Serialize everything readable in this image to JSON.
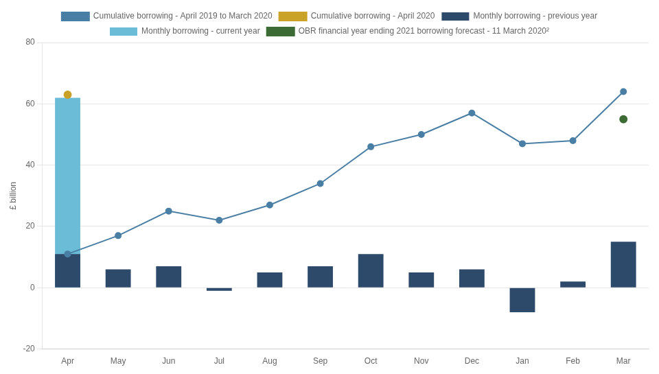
{
  "chart_data": {
    "type": "bar",
    "y_label": "£ billion",
    "categories": [
      "Apr",
      "May",
      "Jun",
      "Jul",
      "Aug",
      "Sep",
      "Oct",
      "Nov",
      "Dec",
      "Jan",
      "Feb",
      "Mar"
    ],
    "series": [
      {
        "name": "Cumulative borrowing - April 2019 to March 2020",
        "type": "line",
        "color": "#4a7fa5",
        "marker": "circle",
        "line_style": "solid",
        "values": [
          11,
          17,
          25,
          22,
          27,
          34,
          46,
          50,
          57,
          47,
          48,
          64
        ]
      },
      {
        "name": "Cumulative borrowing - April 2020",
        "type": "line",
        "color": "#c9a227",
        "marker": "circle",
        "line_style": "none",
        "values": [
          63,
          null,
          null,
          null,
          null,
          null,
          null,
          null,
          null,
          null,
          null,
          null
        ]
      },
      {
        "name": "Monthly borrowing - previous year",
        "type": "bar",
        "color": "#2e4a6b",
        "values": [
          11,
          6,
          7,
          -1,
          5,
          7,
          11,
          5,
          6,
          -8,
          2,
          15
        ]
      },
      {
        "name": "Monthly borrowing - current year",
        "type": "bar",
        "color": "#6bbcd6",
        "values": [
          62,
          null,
          null,
          null,
          null,
          null,
          null,
          null,
          null,
          null,
          null,
          null
        ]
      },
      {
        "name": "OBR financial year ending 2021 borrowing forecast - 11 March 2020²",
        "type": "line",
        "color": "#3d6b35",
        "marker": "circle",
        "line_style": "none",
        "values": [
          null,
          null,
          null,
          null,
          null,
          null,
          null,
          null,
          null,
          null,
          null,
          55
        ]
      }
    ],
    "ylim": [
      -20,
      80
    ],
    "yticks": [
      -20,
      0,
      20,
      40,
      60,
      80
    ],
    "grid": true,
    "legend": "top"
  }
}
